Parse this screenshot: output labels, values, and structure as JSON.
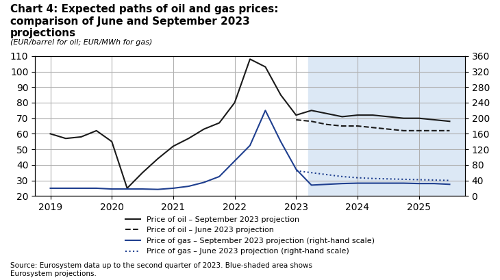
{
  "chart_data": {
    "type": "line",
    "title": "Chart 4: Expected paths of oil and gas prices:\ncomparison of June and September 2023\nprojections",
    "subtitle": "(EUR/barrel for oil; EUR/MWh for gas)",
    "source": "Source: Eurosystem data up to the second quarter of 2023. Blue-shaded area shows\nEurosystem projections.",
    "projection_area": {
      "x": [
        2023.2,
        2025.75
      ],
      "color": "#dce8f5"
    },
    "xlim": [
      2018.75,
      2025.75
    ],
    "xticks": [
      2019,
      2020,
      2021,
      2022,
      2023,
      2024,
      2025
    ],
    "ylim": [
      20,
      110
    ],
    "yticks": [
      20,
      30,
      40,
      50,
      60,
      70,
      80,
      90,
      100,
      110
    ],
    "y2lim": [
      0,
      360
    ],
    "y2ticks": [
      0,
      40,
      80,
      120,
      160,
      200,
      240,
      280,
      320,
      360
    ],
    "grid": true,
    "legend": "lower center",
    "series": [
      {
        "name": "Price of oil – September 2023 projection",
        "color": "#1a1a1a",
        "line_style": "solid",
        "x": [
          2019.0,
          2019.25,
          2019.5,
          2019.75,
          2020.0,
          2020.25,
          2020.5,
          2020.75,
          2021.0,
          2021.25,
          2021.5,
          2021.75,
          2022.0,
          2022.25,
          2022.5,
          2022.75,
          2023.0,
          2023.25,
          2023.5,
          2023.75,
          2024.0,
          2024.25,
          2024.5,
          2024.75,
          2025.0,
          2025.25,
          2025.5
        ],
        "values": [
          60,
          57,
          58,
          62,
          55,
          25,
          35,
          44,
          52,
          57,
          63,
          67,
          80,
          108,
          103,
          85,
          72,
          75,
          73,
          71,
          72,
          72,
          71,
          70,
          70,
          69,
          68
        ]
      },
      {
        "name": "Price of oil – June 2023 projection",
        "color": "#1a1a1a",
        "line_style": "dashed",
        "x": [
          2023.0,
          2023.25,
          2023.5,
          2023.75,
          2024.0,
          2024.25,
          2024.5,
          2024.75,
          2025.0,
          2025.25,
          2025.5
        ],
        "values": [
          69,
          68,
          66,
          65,
          65,
          64,
          63,
          62,
          62,
          62,
          62
        ]
      },
      {
        "name": "Price of gas – September 2023 projection (right-hand scale)",
        "color": "#1f3f8f",
        "line_style": "solid",
        "axis": "y2",
        "x": [
          2019.0,
          2019.25,
          2019.5,
          2019.75,
          2020.0,
          2020.25,
          2020.5,
          2020.75,
          2021.0,
          2021.25,
          2021.5,
          2021.75,
          2022.0,
          2022.25,
          2022.5,
          2022.75,
          2023.0,
          2023.25,
          2023.5,
          2023.75,
          2024.0,
          2024.25,
          2024.5,
          2024.75,
          2025.0,
          2025.25,
          2025.5
        ],
        "values": [
          20,
          20,
          20,
          20,
          18,
          18,
          18,
          17,
          20,
          25,
          35,
          50,
          90,
          130,
          220,
          140,
          69,
          28,
          30,
          32,
          33,
          33,
          33,
          33,
          32,
          32,
          30
        ]
      },
      {
        "name": "Price of gas – June 2023 projection (right-hand scale)",
        "color": "#1f3f8f",
        "line_style": "dotted",
        "axis": "y2",
        "x": [
          2023.0,
          2023.25,
          2023.5,
          2023.75,
          2024.0,
          2024.25,
          2024.5,
          2024.75,
          2025.0,
          2025.25,
          2025.5
        ],
        "values": [
          65,
          60,
          55,
          50,
          47,
          45,
          44,
          43,
          42,
          41,
          40
        ]
      }
    ]
  }
}
